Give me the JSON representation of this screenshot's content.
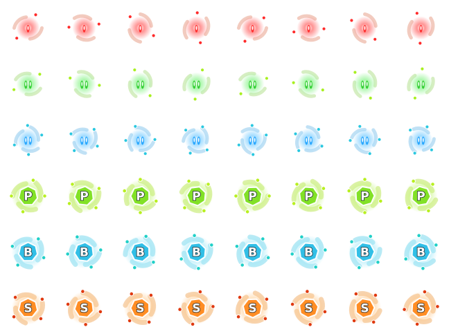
{
  "sheet": {
    "background": "#ffffff",
    "frames_per_row": 8,
    "rows": [
      {
        "kind": "bullet",
        "color": "#ff3030",
        "glow": "#ff8080",
        "swirl": "#e8a08a",
        "orb": "#ff2a2a",
        "label": ""
      },
      {
        "kind": "bullet",
        "color": "#35d035",
        "glow": "#9cf59c",
        "swirl": "#b5e090",
        "orb": "#a8f020",
        "label": ""
      },
      {
        "kind": "bullet",
        "color": "#2aa8ff",
        "glow": "#8fd5ff",
        "swirl": "#8cc8ec",
        "orb": "#2ac8e0",
        "label": ""
      },
      {
        "kind": "powerup",
        "color": "#7ee021",
        "glow": "#c6f57a",
        "swirl": "#c0e860",
        "orb": "#b8f020",
        "label": "P"
      },
      {
        "kind": "powerup",
        "color": "#2bbde6",
        "glow": "#9fe8f8",
        "swirl": "#80d8ec",
        "orb": "#20d0c8",
        "label": "B"
      },
      {
        "kind": "powerup",
        "color": "#ff8a1e",
        "glow": "#ffc98a",
        "swirl": "#f0b070",
        "orb": "#e03a10",
        "label": "S"
      }
    ]
  }
}
